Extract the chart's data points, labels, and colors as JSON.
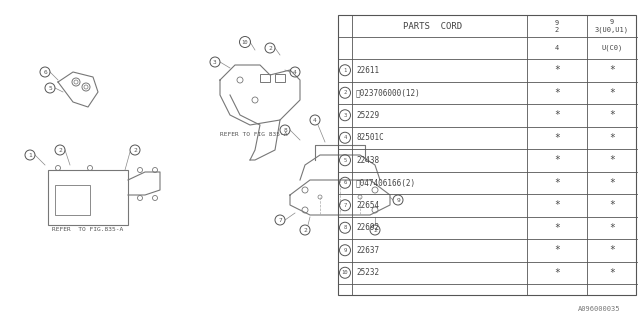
{
  "bg_color": "#ffffff",
  "parts": [
    {
      "num": "1",
      "code": "22611",
      "c1": "*",
      "c2": "*"
    },
    {
      "num": "2",
      "code": "Ⓝ023706000(12)",
      "c1": "*",
      "c2": "*"
    },
    {
      "num": "3",
      "code": "25229",
      "c1": "*",
      "c2": "*"
    },
    {
      "num": "4",
      "code": "82501C",
      "c1": "*",
      "c2": "*"
    },
    {
      "num": "5",
      "code": "22438",
      "c1": "*",
      "c2": "*"
    },
    {
      "num": "6",
      "code": "Ⓞ047406166(2)",
      "c1": "*",
      "c2": "*"
    },
    {
      "num": "7",
      "code": "22654",
      "c1": "*",
      "c2": "*"
    },
    {
      "num": "8",
      "code": "22692",
      "c1": "*",
      "c2": "*"
    },
    {
      "num": "9",
      "code": "22637",
      "c1": "*",
      "c2": "*"
    },
    {
      "num": "10",
      "code": "25232",
      "c1": "*",
      "c2": "*"
    }
  ],
  "footer_text": "A096000035",
  "refer_text1": "REFER TO FIG 835-A",
  "refer_text2": "REFER  TO FIG.835-A"
}
